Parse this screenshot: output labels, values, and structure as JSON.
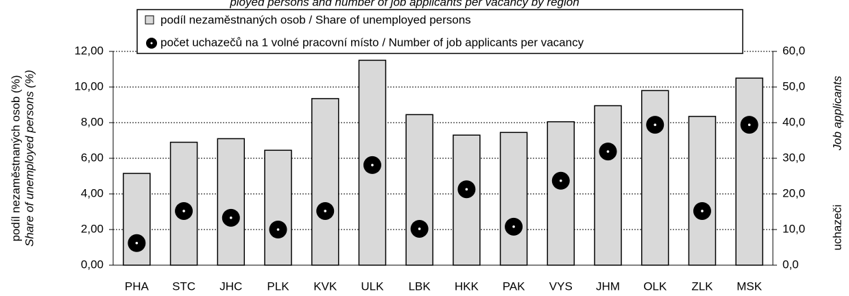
{
  "chart_data": {
    "type": "bar_dot",
    "title": "ployed persons and number of job applicants per vacancy by region",
    "ylabel": "podíl nezaměstnaných osob (%)",
    "ylabel_en": "Share of unemployed persons (%)",
    "y2label": "uchazeči",
    "y2label_en": "Job applicants",
    "categories": [
      "PHA",
      "STC",
      "JHC",
      "PLK",
      "KVK",
      "ULK",
      "LBK",
      "HKK",
      "PAK",
      "VYS",
      "JHM",
      "OLK",
      "ZLK",
      "MSK"
    ],
    "series": [
      {
        "name": "podíl nezaměstnaných osob / Share of unemployed persons",
        "color": "#d9d9d9",
        "values": [
          5.15,
          6.9,
          7.1,
          6.45,
          9.35,
          11.5,
          8.45,
          7.3,
          7.45,
          8.05,
          8.95,
          9.8,
          8.35,
          10.5
        ]
      },
      {
        "name": "počet uchazečů na 1 volné pracovní místo / Number of job applicants per vacancy",
        "color": "#000000",
        "axis": "y2",
        "values": [
          6.2,
          15.2,
          13.3,
          10.0,
          15.2,
          28.1,
          10.2,
          21.3,
          10.8,
          23.7,
          31.9,
          39.4,
          15.2,
          39.4
        ]
      }
    ],
    "ylim": [
      0,
      12
    ],
    "yticks": [
      {
        "value": 0,
        "label": "0,00"
      },
      {
        "value": 2,
        "label": "2,00"
      },
      {
        "value": 4,
        "label": "4,00"
      },
      {
        "value": 6,
        "label": "6,00"
      },
      {
        "value": 8,
        "label": "8,00"
      },
      {
        "value": 10,
        "label": "10,00"
      },
      {
        "value": 12,
        "label": "12,00"
      }
    ],
    "y2lim": [
      0,
      60
    ],
    "y2ticks": [
      {
        "value": 0,
        "label": "0,0"
      },
      {
        "value": 10,
        "label": "10,0"
      },
      {
        "value": 20,
        "label": "20,0"
      },
      {
        "value": 30,
        "label": "30,0"
      },
      {
        "value": 40,
        "label": "40,0"
      },
      {
        "value": 50,
        "label": "50,0"
      },
      {
        "value": 60,
        "label": "60,0"
      }
    ],
    "grid": true
  }
}
